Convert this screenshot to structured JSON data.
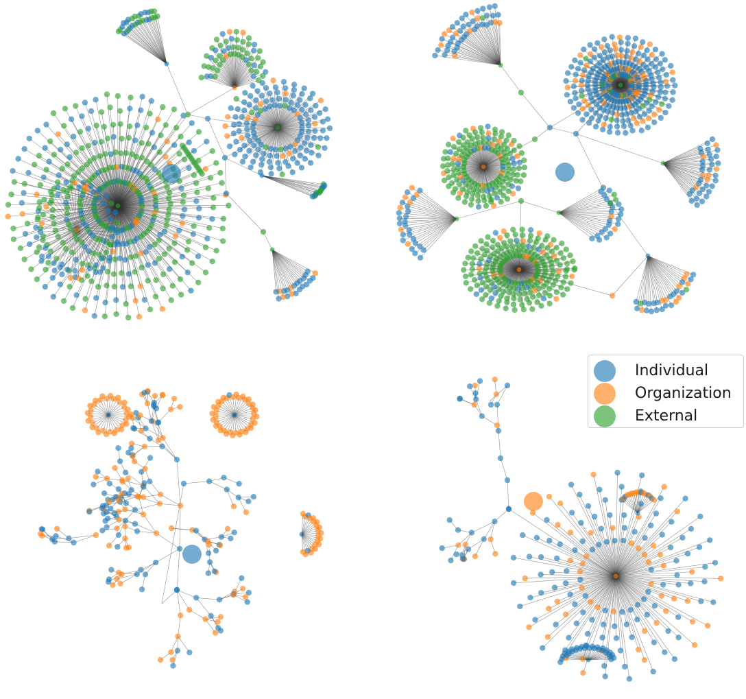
{
  "legend": {
    "items": [
      {
        "label": "Individual",
        "color": "#1f77b4"
      },
      {
        "label": "Organization",
        "color": "#ff7f0e"
      },
      {
        "label": "External",
        "color": "#2ca02c"
      }
    ]
  },
  "colors": {
    "individual": "#1f77b4",
    "organization": "#ff7f0e",
    "external": "#2ca02c",
    "edge": "#333333"
  },
  "panels": [
    {
      "id": "top-left",
      "node_types": [
        "individual",
        "organization",
        "external"
      ]
    },
    {
      "id": "top-right",
      "node_types": [
        "individual",
        "organization",
        "external"
      ]
    },
    {
      "id": "bottom-left",
      "node_types": [
        "individual",
        "organization"
      ]
    },
    {
      "id": "bottom-right",
      "node_types": [
        "individual",
        "organization"
      ]
    }
  ]
}
